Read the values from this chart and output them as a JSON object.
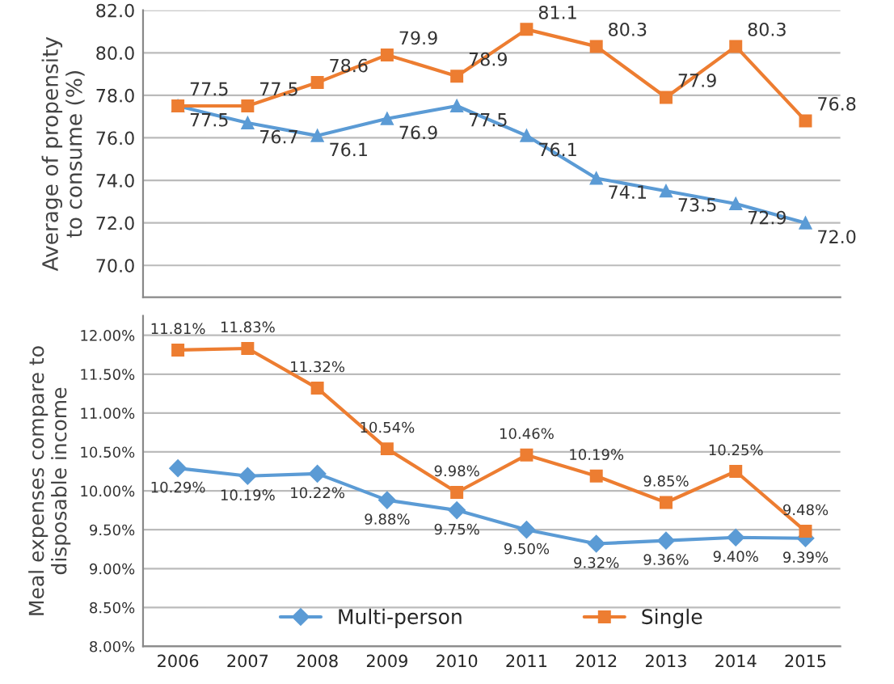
{
  "chart_data": [
    {
      "type": "line",
      "ylabel": "Average of propensity\nto consume (%)",
      "categories": [
        "2006",
        "2007",
        "2008",
        "2009",
        "2010",
        "2011",
        "2012",
        "2013",
        "2014",
        "2015"
      ],
      "ylim": [
        68.5,
        82
      ],
      "yticks": [
        {
          "value": 70,
          "label": "70.0"
        },
        {
          "value": 72,
          "label": "72.0"
        },
        {
          "value": 74,
          "label": "74.0"
        },
        {
          "value": 76,
          "label": "76.0"
        },
        {
          "value": 78,
          "label": "78.0"
        },
        {
          "value": 80,
          "label": "80.0"
        },
        {
          "value": 82,
          "label": "82.0"
        }
      ],
      "grid": "y",
      "tick_labels": "y",
      "series": [
        {
          "color": "#5b9bd5",
          "marker": "triangle",
          "values": [
            77.5,
            76.7,
            76.1,
            76.9,
            77.5,
            76.1,
            74.1,
            73.5,
            72.9,
            72.0
          ],
          "value_labels": [
            "77.5",
            "76.7",
            "76.1",
            "76.9",
            "77.5",
            "76.1",
            "74.1",
            "73.5",
            "72.9",
            "72.0"
          ]
        },
        {
          "color": "#ed7d31",
          "marker": "square",
          "values": [
            77.5,
            77.5,
            78.6,
            79.9,
            78.9,
            81.1,
            80.3,
            77.9,
            80.3,
            76.8
          ],
          "value_labels": [
            "77.5",
            "77.5",
            "78.6",
            "79.9",
            "78.9",
            "81.1",
            "80.3",
            "77.9",
            "80.3",
            "76.8"
          ]
        }
      ]
    },
    {
      "type": "line",
      "ylabel": "Meal expenses compare to\ndisposable income",
      "categories": [
        "2006",
        "2007",
        "2008",
        "2009",
        "2010",
        "2011",
        "2012",
        "2013",
        "2014",
        "2015"
      ],
      "ylim": [
        8,
        12.25
      ],
      "yticks": [
        {
          "value": 8,
          "label": "8.00%"
        },
        {
          "value": 8.5,
          "label": "8.50%"
        },
        {
          "value": 9,
          "label": "9.00%"
        },
        {
          "value": 9.5,
          "label": "9.50%"
        },
        {
          "value": 10,
          "label": "10.00%"
        },
        {
          "value": 10.5,
          "label": "10.50%"
        },
        {
          "value": 11,
          "label": "11.00%"
        },
        {
          "value": 11.5,
          "label": "11.50%"
        },
        {
          "value": 12,
          "label": "12.00%"
        }
      ],
      "grid": "y",
      "legend": "bottom",
      "series": [
        {
          "name": "Multi-person",
          "color": "#5b9bd5",
          "marker": "diamond",
          "values": [
            10.29,
            10.19,
            10.22,
            9.88,
            9.75,
            9.5,
            9.32,
            9.36,
            9.4,
            9.39
          ],
          "value_labels": [
            "10.29%",
            "10.19%",
            "10.22%",
            "9.88%",
            "9.75%",
            "9.50%",
            "9.32%",
            "9.36%",
            "9.40%",
            "9.39%"
          ]
        },
        {
          "name": "Single",
          "color": "#ed7d31",
          "marker": "square",
          "values": [
            11.81,
            11.83,
            11.32,
            10.54,
            9.98,
            10.46,
            10.19,
            9.85,
            10.25,
            9.48
          ],
          "value_labels": [
            "11.81%",
            "11.83%",
            "11.32%",
            "10.54%",
            "9.98%",
            "10.46%",
            "10.19%",
            "9.85%",
            "10.25%",
            "9.48%"
          ]
        }
      ]
    }
  ]
}
